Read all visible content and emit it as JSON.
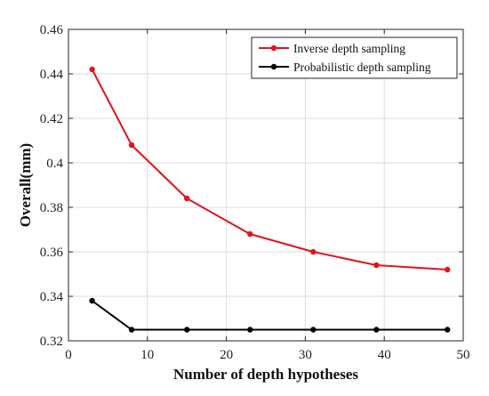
{
  "chart_data": {
    "type": "line",
    "title": "",
    "xlabel": "Number of depth hypotheses",
    "ylabel": "Overall(mm)",
    "xlim": [
      0,
      50
    ],
    "ylim": [
      0.32,
      0.46
    ],
    "xticks": [
      0,
      10,
      20,
      30,
      40,
      50
    ],
    "yticks": [
      0.32,
      0.34,
      0.36,
      0.38,
      0.4,
      0.42,
      0.44,
      0.46
    ],
    "xtick_labels": [
      "0",
      "10",
      "20",
      "30",
      "40",
      "50"
    ],
    "ytick_labels": [
      "0.32",
      "0.34",
      "0.36",
      "0.38",
      "0.4",
      "0.42",
      "0.44",
      "0.46"
    ],
    "grid": true,
    "legend_position": "top-right",
    "series": [
      {
        "name": "Inverse depth sampling",
        "color": "#e0141e",
        "x": [
          3,
          8,
          15,
          23,
          31,
          39,
          48
        ],
        "y": [
          0.442,
          0.408,
          0.384,
          0.368,
          0.36,
          0.354,
          0.352
        ]
      },
      {
        "name": "Probabilistic depth sampling",
        "color": "#000000",
        "x": [
          3,
          8,
          15,
          23,
          31,
          39,
          48
        ],
        "y": [
          0.338,
          0.325,
          0.325,
          0.325,
          0.325,
          0.325,
          0.325
        ]
      }
    ]
  }
}
